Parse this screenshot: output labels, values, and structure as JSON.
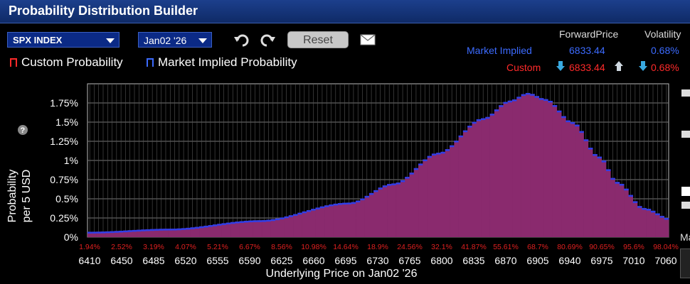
{
  "window": {
    "title": "Probability Distribution Builder"
  },
  "toolbar": {
    "symbol": "SPX INDEX",
    "expiry": "Jan02 '26",
    "reset_label": "Reset"
  },
  "legend": {
    "custom": "Custom Probability",
    "market": "Market Implied Probability"
  },
  "stats": {
    "col_forward": "ForwardPrice",
    "col_vol": "Volatility",
    "market_label": "Market Implied",
    "market_forward": "6833.44",
    "market_vol": "0.68%",
    "custom_label": "Custom",
    "custom_forward": "6833.44",
    "custom_vol": "0.68%"
  },
  "side": {
    "cut_label": "Ma"
  },
  "colors": {
    "bar": "#8a2a6e",
    "bar_top": "#2f3fe8",
    "custom": "#ff2a2a",
    "market": "#3c6bff",
    "accent": "#0b2a86"
  },
  "chart_data": {
    "type": "bar",
    "ylabel": "Probability per 5 USD",
    "xlabel": "Underlying Price on Jan02 '26",
    "ylim": [
      0,
      2.0
    ],
    "yticks": [
      "0%",
      "0.25%",
      "0.5%",
      "0.75%",
      "1%",
      "1.25%",
      "1.5%",
      "1.75%"
    ],
    "yticks_values": [
      0,
      0.25,
      0.5,
      0.75,
      1.0,
      1.25,
      1.5,
      1.75
    ],
    "xticks": [
      "6410",
      "6450",
      "6485",
      "6520",
      "6555",
      "6590",
      "6625",
      "6660",
      "6695",
      "6730",
      "6765",
      "6800",
      "6835",
      "6870",
      "6905",
      "6940",
      "6975",
      "7010",
      "7060"
    ],
    "cumulative_labels": [
      "1.94%",
      "2.52%",
      "3.19%",
      "4.07%",
      "5.21%",
      "6.67%",
      "8.56%",
      "10.98%",
      "14.64%",
      "18.9%",
      "24.56%",
      "32.1%",
      "41.87%",
      "55.61%",
      "68.7%",
      "80.69%",
      "90.65%",
      "95.6%",
      "98.04%"
    ],
    "x_start": 6410,
    "x_end": 7060,
    "bin_width": 5,
    "shape_x": [
      6410,
      6500,
      6600,
      6700,
      6750,
      6800,
      6850,
      6880,
      6900,
      6920,
      6950,
      6980,
      7000,
      7030,
      7060
    ],
    "shape_y": [
      0.07,
      0.11,
      0.22,
      0.45,
      0.7,
      1.1,
      1.55,
      1.78,
      1.88,
      1.8,
      1.5,
      1.05,
      0.72,
      0.38,
      0.24
    ],
    "series": [
      {
        "name": "Market Implied Probability",
        "type": "bar"
      }
    ]
  }
}
